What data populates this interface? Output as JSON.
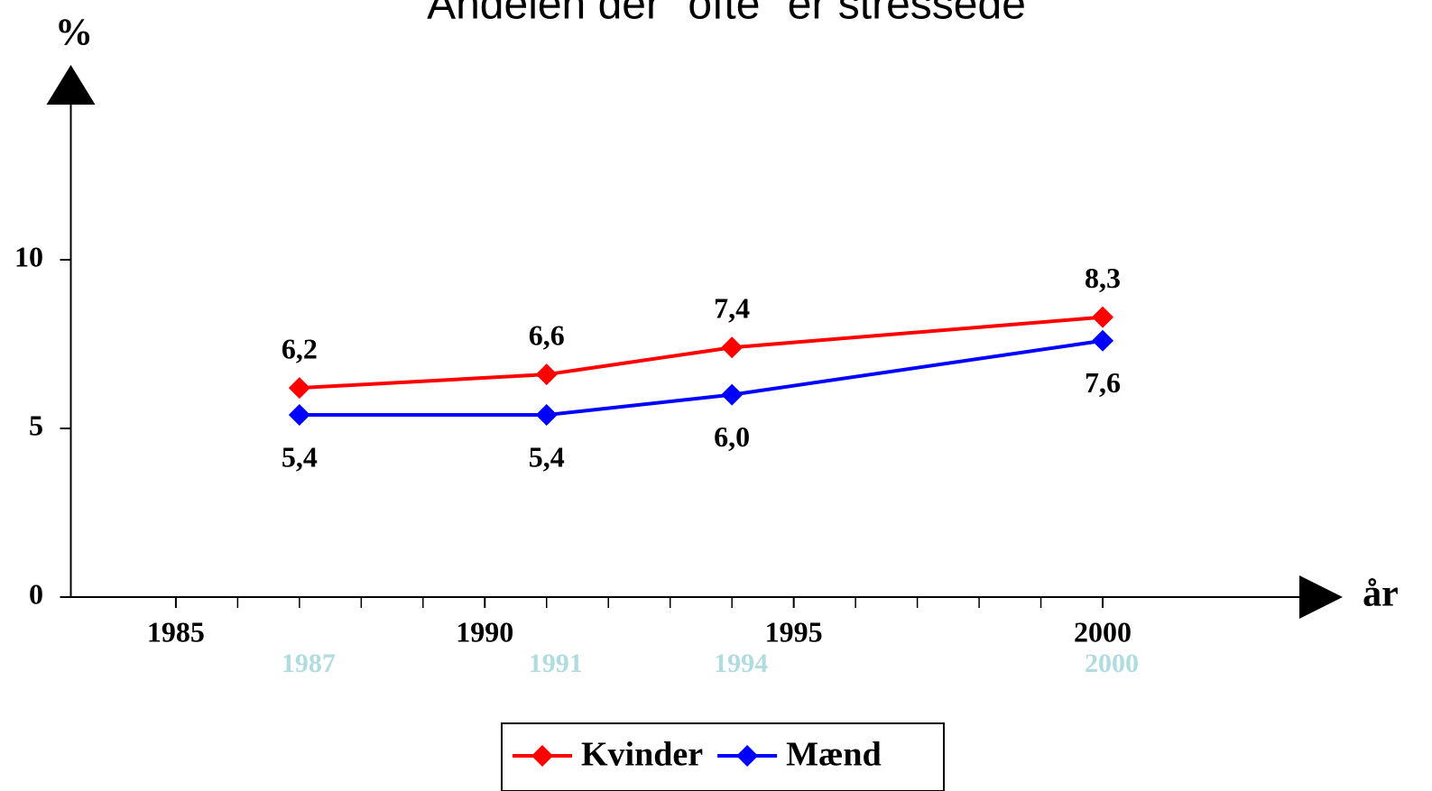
{
  "chart_data": {
    "type": "line",
    "title": "Andelen der \"ofte\" er stressede",
    "y_label": "%",
    "x_label": "år",
    "x": [
      1987,
      1991,
      1994,
      2000
    ],
    "x_point_labels": [
      "1987",
      "1991",
      "1994",
      "2000"
    ],
    "series": [
      {
        "name": "Kvinder",
        "color": "#ff0000",
        "values": [
          6.2,
          6.6,
          7.4,
          8.3
        ],
        "value_labels": [
          "6,2",
          "6,6",
          "7,4",
          "8,3"
        ],
        "label_position": "above"
      },
      {
        "name": "Mænd",
        "color": "#0000ff",
        "values": [
          5.4,
          5.4,
          6.0,
          7.6
        ],
        "value_labels": [
          "5,4",
          "5,4",
          "6,0",
          "7,6"
        ],
        "label_position": "below"
      }
    ],
    "xlim": [
      1983.3,
      2003.3
    ],
    "xticks": [
      1985,
      1990,
      1995,
      2000
    ],
    "xticks_minor": [
      1986,
      1987,
      1988,
      1989,
      1991,
      1992,
      1993,
      1994,
      1996,
      1997,
      1998,
      1999
    ],
    "ylim": [
      0,
      14.6
    ],
    "yticks": [
      0,
      5,
      10
    ],
    "legend": "bottom"
  }
}
